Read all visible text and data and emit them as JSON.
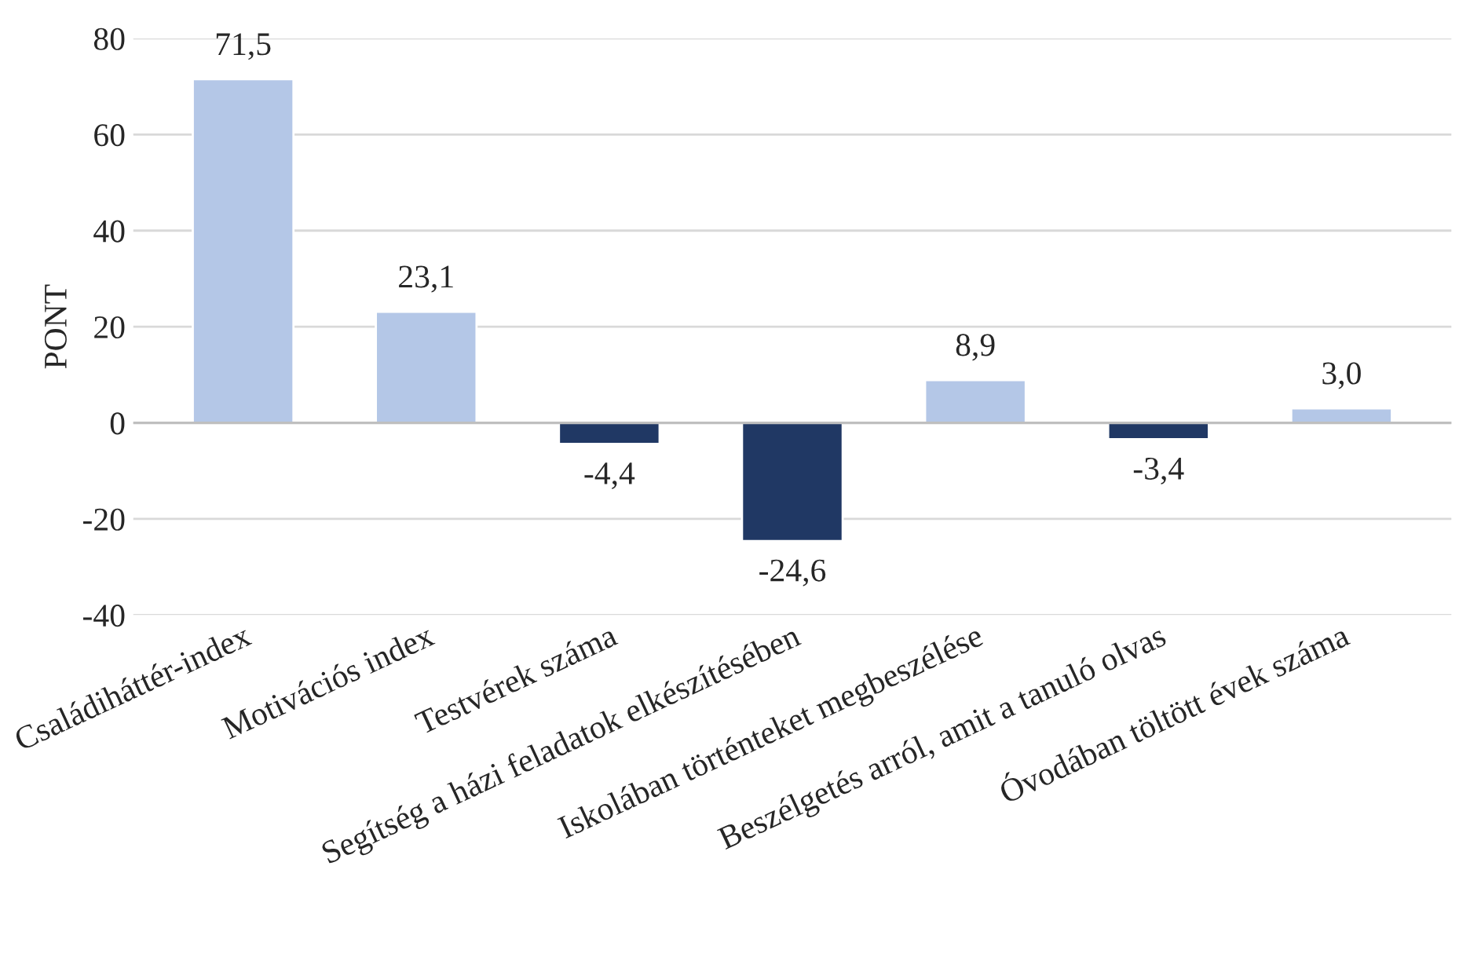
{
  "chart_data": {
    "type": "bar",
    "ylabel": "PONT",
    "categories": [
      "Családiháttér-index",
      "Motivációs index",
      "Testvérek száma",
      "Segítség a házi feladatok elkészítésében",
      "Iskolában történteket megbeszélése",
      "Beszélgetés arról, amit a tanuló olvas",
      "Óvodában töltött évek száma"
    ],
    "values": [
      71.5,
      23.1,
      -4.4,
      -24.6,
      8.9,
      -3.4,
      3.0
    ],
    "value_labels": [
      "71,5",
      "23,1",
      "-4,4",
      "-24,6",
      "8,9",
      "-3,4",
      "3,0"
    ],
    "colors": [
      "#b4c7e7",
      "#b4c7e7",
      "#203864",
      "#203864",
      "#b4c7e7",
      "#203864",
      "#b4c7e7"
    ],
    "ylim": [
      -40,
      80
    ],
    "yticks": [
      -40,
      -20,
      0,
      20,
      40,
      60,
      80
    ],
    "grid": "y"
  }
}
